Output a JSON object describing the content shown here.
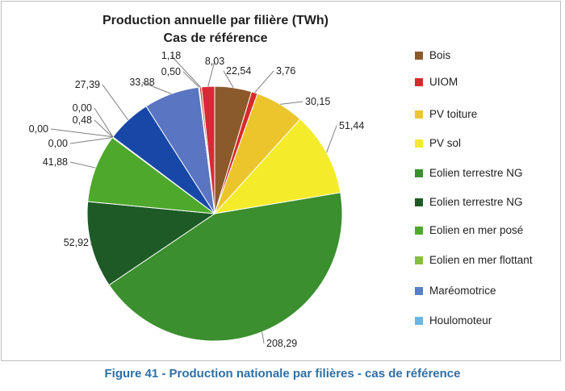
{
  "chart_data": {
    "type": "pie",
    "title": "Production annuelle par filière (TWh)",
    "subtitle": "Cas de référence",
    "legend_position": "right",
    "slices": [
      {
        "name": "Bois",
        "value": 22.54,
        "label": "22,54",
        "color": "#8b5a2b"
      },
      {
        "name": "UIOM",
        "value": 3.76,
        "label": "3,76",
        "color": "#d92a2a"
      },
      {
        "name": "PV toiture",
        "value": 30.15,
        "label": "30,15",
        "color": "#ecc52d"
      },
      {
        "name": "PV sol",
        "value": 51.44,
        "label": "51,44",
        "color": "#f4ec2a"
      },
      {
        "name": "Eolien terrestre NG",
        "value": 208.29,
        "label": "208,29",
        "color": "#3b8f2e"
      },
      {
        "name": "Eolien terrestre NG",
        "value": 52.92,
        "label": "52,92",
        "color": "#1e5a26"
      },
      {
        "name": "Eolien en mer posé",
        "value": 41.88,
        "label": "41,88",
        "color": "#4ea82c"
      },
      {
        "name": "Eolien en mer flottant",
        "value": 0.0,
        "label": "0,00",
        "color": "#86bf3a"
      },
      {
        "name": "Maréomotrice",
        "value": 0.48,
        "label": "0,48",
        "color": "#5a7fc4"
      },
      {
        "name": "Houlomoteur",
        "value": 0.0,
        "label": "0,00",
        "color": "#6cb6e3"
      },
      {
        "name": "",
        "value": 0.0,
        "label": "0,00",
        "color": "#1f5fb0"
      },
      {
        "name": "",
        "value": 27.39,
        "label": "27,39",
        "color": "#1748a8"
      },
      {
        "name": "",
        "value": 33.88,
        "label": "33,88",
        "color": "#5a75c2"
      },
      {
        "name": "",
        "value": 0.5,
        "label": "0,50",
        "color": "#d8d264"
      },
      {
        "name": "",
        "value": 1.18,
        "label": "1,18",
        "color": "#b04a2a"
      },
      {
        "name": "",
        "value": 8.03,
        "label": "8,03",
        "color": "#d82a36"
      }
    ],
    "legend": [
      {
        "label": "Bois",
        "color": "#8b5a2b"
      },
      {
        "label": "UIOM",
        "color": "#d92a2a"
      },
      {
        "label": "PV toiture",
        "color": "#ecc52d"
      },
      {
        "label": "PV sol",
        "color": "#f4ec2a"
      },
      {
        "label": "Eolien terrestre NG",
        "color": "#3b8f2e"
      },
      {
        "label": "Eolien terrestre NG",
        "color": "#1e5a26"
      },
      {
        "label": "Eolien en mer posé",
        "color": "#4ea82c"
      },
      {
        "label": "Eolien en mer flottant",
        "color": "#86bf3a"
      },
      {
        "label": "Maréomotrice",
        "color": "#5a7fc4"
      },
      {
        "label": "Houlomoteur",
        "color": "#6cb6e3"
      }
    ]
  },
  "caption": "Figure 41 - Production nationale par filières - cas de référence"
}
